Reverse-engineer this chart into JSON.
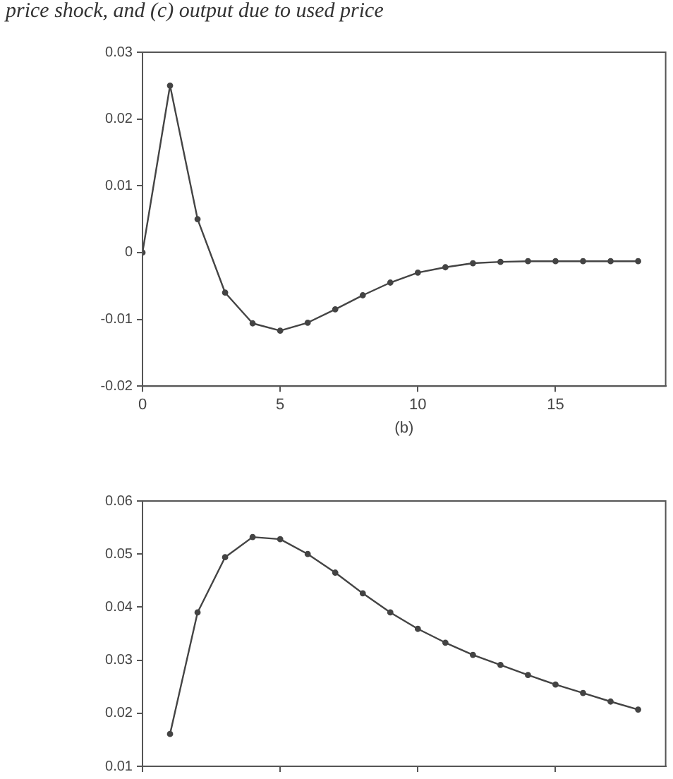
{
  "chart_data": [
    {
      "type": "line",
      "title": "price shock, and (c) output due to used price",
      "xlabel": "(b)",
      "x": [
        0,
        1,
        2,
        3,
        4,
        5,
        6,
        7,
        8,
        9,
        10,
        11,
        12,
        13,
        14,
        15,
        16,
        17,
        18
      ],
      "series": [
        {
          "color": "#444444",
          "values": [
            0,
            0.025,
            0.005,
            -0.006,
            -0.0106,
            -0.0117,
            -0.0105,
            -0.0085,
            -0.0064,
            -0.0045,
            -0.003,
            -0.0022,
            -0.0016,
            -0.0014,
            -0.0013,
            -0.0013,
            -0.0013,
            -0.0013,
            -0.0013
          ]
        }
      ],
      "xlim": [
        0,
        19
      ],
      "xticks": [
        0,
        5,
        10,
        15
      ],
      "ylim": [
        -0.02,
        0.03
      ],
      "yticks": [
        -0.02,
        -0.01,
        0,
        0.01,
        0.02,
        0.03
      ],
      "marker": "circle",
      "line_style": "solid",
      "grid": false,
      "legend": false
    },
    {
      "type": "line",
      "x": [
        1,
        2,
        3,
        4,
        5,
        6,
        7,
        8,
        9,
        10,
        11,
        12,
        13,
        14,
        15,
        16,
        17,
        18
      ],
      "series": [
        {
          "color": "#444444",
          "values": [
            0.0161,
            0.039,
            0.0494,
            0.0532,
            0.0528,
            0.05,
            0.0465,
            0.0426,
            0.039,
            0.0359,
            0.0333,
            0.031,
            0.0291,
            0.0272,
            0.0254,
            0.0238,
            0.0222,
            0.0207
          ]
        }
      ],
      "xlim": [
        0,
        19
      ],
      "xticks": [
        0,
        5,
        10,
        15
      ],
      "ylim": [
        0.01,
        0.06
      ],
      "yticks": [
        0.01,
        0.02,
        0.03,
        0.04,
        0.05,
        0.06
      ],
      "tick_labels": "y",
      "marker": "circle",
      "line_style": "solid",
      "grid": false,
      "legend": false
    }
  ]
}
